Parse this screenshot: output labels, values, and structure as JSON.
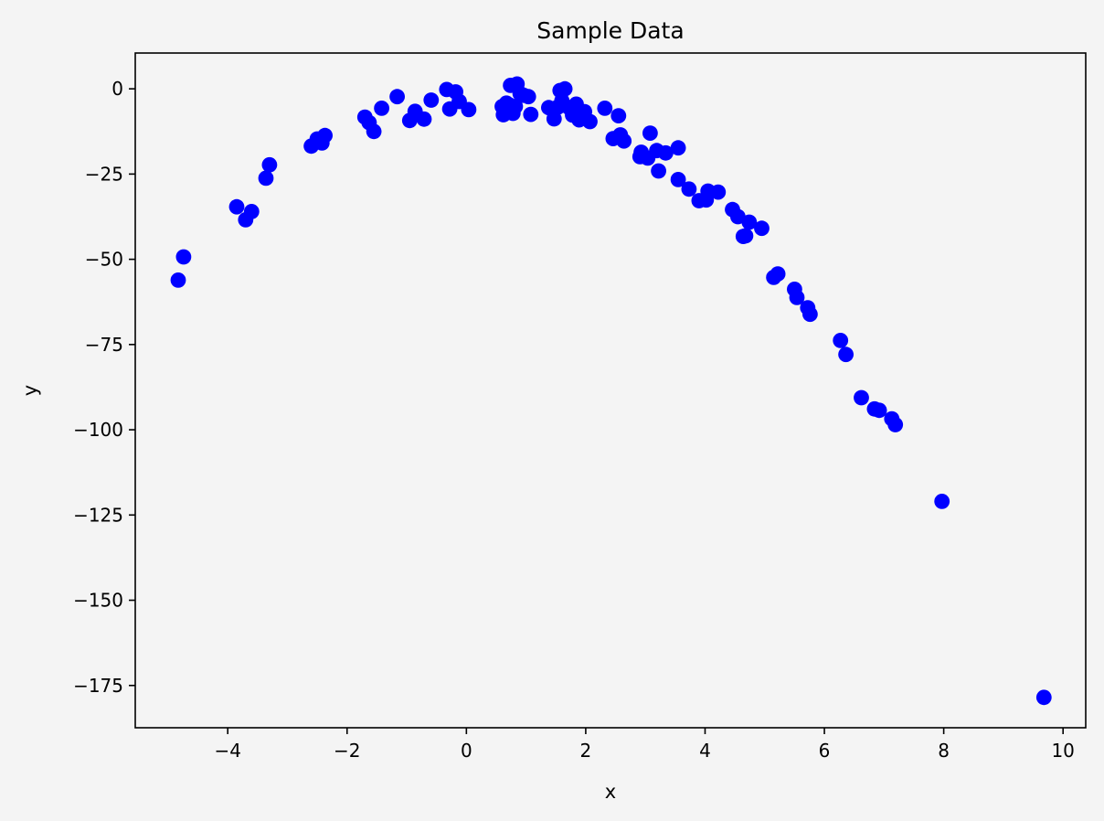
{
  "chart_data": {
    "type": "scatter",
    "title": "Sample Data",
    "xlabel": "x",
    "ylabel": "y",
    "xlim": [
      -5.55,
      10.38
    ],
    "ylim": [
      -187.4,
      10.5
    ],
    "xticks": [
      -4,
      -2,
      0,
      2,
      4,
      6,
      8,
      10
    ],
    "yticks": [
      0,
      -25,
      -50,
      -75,
      -100,
      -125,
      -150,
      -175
    ],
    "grid": false,
    "legend": false,
    "marker_color": "#0000ff",
    "series": [
      {
        "x": [
          -4.83,
          -4.74,
          -3.85,
          -3.7,
          -3.6,
          -3.36,
          -3.3,
          -2.6,
          -2.5,
          -2.42,
          -2.37,
          -1.7,
          -1.63,
          -1.55,
          -1.42,
          -1.16,
          -0.95,
          -0.86,
          -0.71,
          -0.59,
          -0.33,
          -0.28,
          -0.18,
          -0.12,
          0.04,
          0.6,
          0.62,
          0.67,
          0.72,
          0.74,
          0.78,
          0.82,
          0.85,
          0.9,
          0.96,
          1.04,
          1.08,
          1.38,
          1.47,
          1.53,
          1.57,
          1.6,
          1.65,
          1.72,
          1.78,
          1.84,
          1.89,
          1.98,
          2.07,
          2.32,
          2.46,
          2.55,
          2.58,
          2.64,
          2.91,
          2.93,
          3.04,
          3.08,
          3.19,
          3.22,
          3.34,
          3.55,
          3.55,
          3.73,
          3.9,
          4.02,
          4.05,
          4.22,
          4.46,
          4.55,
          4.64,
          4.68,
          4.74,
          4.95,
          5.15,
          5.22,
          5.5,
          5.54,
          5.72,
          5.76,
          6.27,
          6.36,
          6.62,
          6.84,
          6.92,
          7.13,
          7.19,
          7.97,
          9.68
        ],
        "y": [
          -56.1,
          -49.3,
          -34.6,
          -38.4,
          -36.0,
          -26.2,
          -22.3,
          -16.8,
          -14.7,
          -15.9,
          -13.7,
          -8.3,
          -9.9,
          -12.5,
          -5.7,
          -2.3,
          -9.3,
          -6.6,
          -8.9,
          -3.3,
          -0.2,
          -5.9,
          -0.9,
          -3.7,
          -6.1,
          -5.2,
          -7.6,
          -4.2,
          -4.7,
          1.0,
          -7.2,
          -5.2,
          1.4,
          -1.4,
          -1.9,
          -2.3,
          -7.5,
          -5.5,
          -8.8,
          -5.4,
          -0.5,
          -3.5,
          0.0,
          -5.5,
          -7.7,
          -4.5,
          -9.1,
          -6.7,
          -9.6,
          -5.7,
          -14.6,
          -7.9,
          -13.5,
          -15.3,
          -19.9,
          -18.6,
          -20.3,
          -13.0,
          -18.1,
          -24.1,
          -18.8,
          -26.6,
          -17.3,
          -29.4,
          -32.8,
          -32.6,
          -30.0,
          -30.3,
          -35.4,
          -37.5,
          -43.3,
          -43.1,
          -39.1,
          -40.9,
          -55.3,
          -54.3,
          -58.8,
          -61.2,
          -64.2,
          -66.1,
          -73.8,
          -77.9,
          -90.6,
          -93.9,
          -94.3,
          -96.8,
          -98.5,
          -121.0,
          -178.5
        ]
      }
    ]
  }
}
